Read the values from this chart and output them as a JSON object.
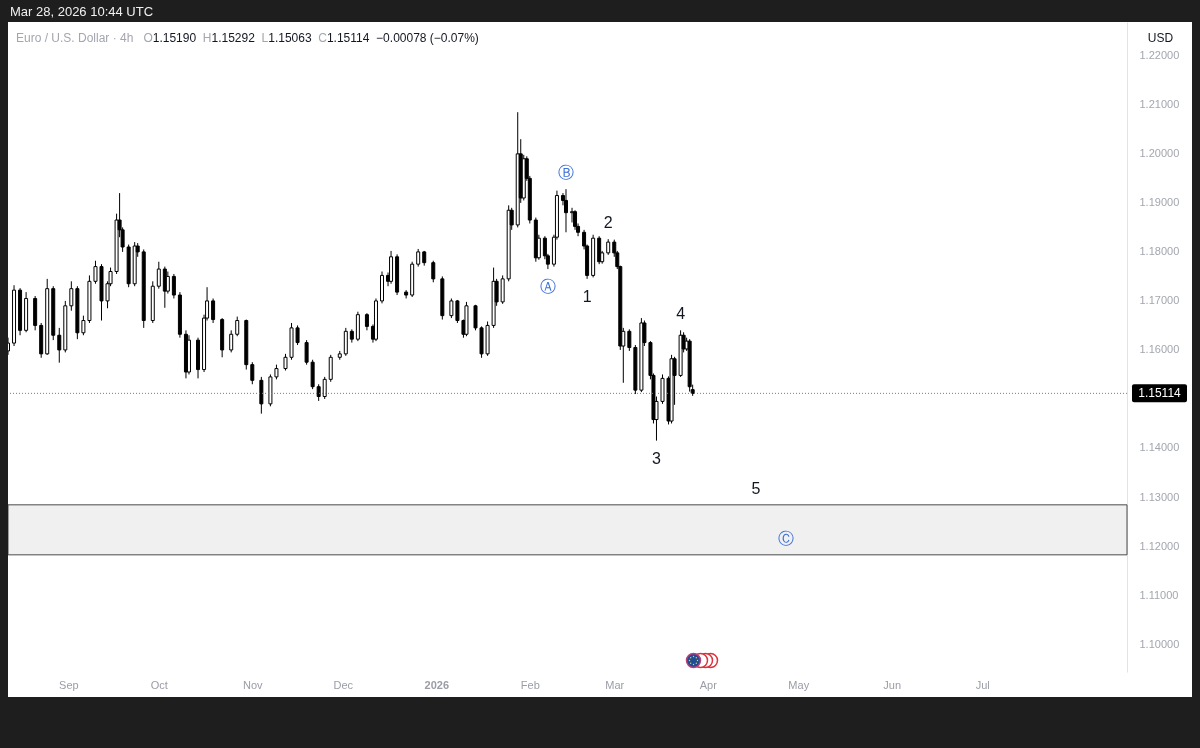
{
  "chart_data": {
    "type": "candlestick",
    "title": "Euro / U.S. Dollar · 4h",
    "subtitle": "O1.15190  H1.15292  L1.15063  C1.15114  −0.00078 (−0.07%)",
    "ylabel": "USD",
    "color": "#000000",
    "annotations": [
      "Mar 28, 2026 10:44 UTC",
      {
        "text": "Ⓐ",
        "x": "2026-02-07",
        "y": 1.1765
      },
      {
        "text": "Ⓑ",
        "x": "2026-02-13",
        "y": 1.1928
      },
      {
        "text": "1",
        "x": "2026-02-20",
        "y": 1.1745
      },
      {
        "text": "2",
        "x": "2026-02-27",
        "y": 1.1826
      },
      {
        "text": "3",
        "x": "2026-03-15",
        "y": 1.1415
      },
      {
        "text": "4",
        "x": "2026-03-23",
        "y": 1.164
      },
      {
        "text": "5",
        "x": "2026-04-17",
        "y": 1.1284
      },
      {
        "text": "Ⓒ",
        "x": "2026-04-27",
        "y": 1.1182
      }
    ],
    "x": [
      "2025-08-12",
      "2025-08-14",
      "2025-08-16",
      "2025-08-18",
      "2025-08-21",
      "2025-08-23",
      "2025-08-25",
      "2025-08-27",
      "2025-08-29",
      "2025-08-31",
      "2025-09-02",
      "2025-09-04",
      "2025-09-06",
      "2025-09-08",
      "2025-09-10",
      "2025-09-12",
      "2025-09-14",
      "2025-09-15",
      "2025-09-17",
      "2025-09-18",
      "2025-09-19",
      "2025-09-21",
      "2025-09-23",
      "2025-09-24",
      "2025-09-26",
      "2025-09-29",
      "2025-10-01",
      "2025-10-03",
      "2025-10-04",
      "2025-10-06",
      "2025-10-08",
      "2025-10-10",
      "2025-10-11",
      "2025-10-14",
      "2025-10-16",
      "2025-10-17",
      "2025-10-19",
      "2025-10-22",
      "2025-10-25",
      "2025-10-27",
      "2025-10-30",
      "2025-11-01",
      "2025-11-04",
      "2025-11-07",
      "2025-11-09",
      "2025-11-12",
      "2025-11-14",
      "2025-11-16",
      "2025-11-19",
      "2025-11-21",
      "2025-11-23",
      "2025-11-25",
      "2025-11-27",
      "2025-11-30",
      "2025-12-02",
      "2025-12-04",
      "2025-12-06",
      "2025-12-09",
      "2025-12-11",
      "2025-12-12",
      "2025-12-14",
      "2025-12-16",
      "2025-12-17",
      "2025-12-19",
      "2025-12-22",
      "2025-12-24",
      "2025-12-26",
      "2025-12-28",
      "2025-12-31",
      "2026-01-03",
      "2026-01-06",
      "2026-01-08",
      "2026-01-10",
      "2026-01-11",
      "2026-01-14",
      "2026-01-16",
      "2026-01-18",
      "2026-01-20",
      "2026-01-21",
      "2026-01-23",
      "2026-01-25",
      "2026-01-26",
      "2026-01-28",
      "2026-01-29",
      "2026-01-30",
      "2026-01-31",
      "2026-02-01",
      "2026-02-03",
      "2026-02-04",
      "2026-02-06",
      "2026-02-07",
      "2026-02-09",
      "2026-02-10",
      "2026-02-12",
      "2026-02-13",
      "2026-02-15",
      "2026-02-16",
      "2026-02-17",
      "2026-02-19",
      "2026-02-20",
      "2026-02-22",
      "2026-02-24",
      "2026-02-25",
      "2026-02-27",
      "2026-03-01",
      "2026-03-02",
      "2026-03-03",
      "2026-03-04",
      "2026-03-06",
      "2026-03-08",
      "2026-03-10",
      "2026-03-11",
      "2026-03-13",
      "2026-03-14",
      "2026-03-15",
      "2026-03-17",
      "2026-03-19",
      "2026-03-20",
      "2026-03-21",
      "2026-03-23",
      "2026-03-24",
      "2026-03-25",
      "2026-03-26",
      "2026-03-27"
    ],
    "ohlc": [
      [
        1.1598,
        1.1625,
        1.159,
        1.1614
      ],
      [
        1.1614,
        1.1732,
        1.1608,
        1.1722
      ],
      [
        1.1722,
        1.1726,
        1.163,
        1.164
      ],
      [
        1.164,
        1.1718,
        1.1636,
        1.1705
      ],
      [
        1.1705,
        1.171,
        1.164,
        1.165
      ],
      [
        1.165,
        1.1655,
        1.1584,
        1.1592
      ],
      [
        1.1592,
        1.1745,
        1.159,
        1.1725
      ],
      [
        1.1725,
        1.173,
        1.162,
        1.163
      ],
      [
        1.163,
        1.1645,
        1.1574,
        1.16
      ],
      [
        1.16,
        1.17,
        1.1595,
        1.169
      ],
      [
        1.169,
        1.174,
        1.168,
        1.1725
      ],
      [
        1.1725,
        1.173,
        1.1622,
        1.1635
      ],
      [
        1.1635,
        1.167,
        1.163,
        1.166
      ],
      [
        1.166,
        1.1752,
        1.1655,
        1.174
      ],
      [
        1.174,
        1.1782,
        1.1735,
        1.177
      ],
      [
        1.177,
        1.1775,
        1.166,
        1.17
      ],
      [
        1.17,
        1.174,
        1.1685,
        1.1735
      ],
      [
        1.1735,
        1.1768,
        1.173,
        1.176
      ],
      [
        1.176,
        1.1878,
        1.1755,
        1.1865
      ],
      [
        1.1865,
        1.192,
        1.183,
        1.1845
      ],
      [
        1.1845,
        1.185,
        1.18,
        1.181
      ],
      [
        1.181,
        1.1815,
        1.1728,
        1.1735
      ],
      [
        1.1735,
        1.182,
        1.173,
        1.1812
      ],
      [
        1.1812,
        1.1818,
        1.179,
        1.18
      ],
      [
        1.18,
        1.1805,
        1.1645,
        1.166
      ],
      [
        1.166,
        1.174,
        1.1655,
        1.173
      ],
      [
        1.173,
        1.178,
        1.1725,
        1.1765
      ],
      [
        1.1765,
        1.177,
        1.1686,
        1.172
      ],
      [
        1.172,
        1.176,
        1.1715,
        1.175
      ],
      [
        1.175,
        1.1755,
        1.1705,
        1.1712
      ],
      [
        1.1712,
        1.1718,
        1.1625,
        1.1632
      ],
      [
        1.1632,
        1.164,
        1.1542,
        1.1555
      ],
      [
        1.1555,
        1.163,
        1.155,
        1.162
      ],
      [
        1.162,
        1.1625,
        1.1542,
        1.156
      ],
      [
        1.156,
        1.1672,
        1.1555,
        1.1665
      ],
      [
        1.1665,
        1.1728,
        1.166,
        1.17
      ],
      [
        1.17,
        1.1705,
        1.1655,
        1.1662
      ],
      [
        1.1662,
        1.1665,
        1.1585,
        1.16
      ],
      [
        1.16,
        1.164,
        1.1595,
        1.1632
      ],
      [
        1.1632,
        1.1668,
        1.1628,
        1.166
      ],
      [
        1.166,
        1.1662,
        1.156,
        1.157
      ],
      [
        1.157,
        1.1575,
        1.153,
        1.1538
      ],
      [
        1.1538,
        1.1545,
        1.147,
        1.149
      ],
      [
        1.149,
        1.155,
        1.1485,
        1.1545
      ],
      [
        1.1545,
        1.157,
        1.154,
        1.1562
      ],
      [
        1.1562,
        1.1592,
        1.1558,
        1.1585
      ],
      [
        1.1585,
        1.1655,
        1.158,
        1.1645
      ],
      [
        1.1645,
        1.165,
        1.161,
        1.1615
      ],
      [
        1.1615,
        1.162,
        1.157,
        1.1575
      ],
      [
        1.1575,
        1.158,
        1.152,
        1.1525
      ],
      [
        1.1525,
        1.153,
        1.1496,
        1.1505
      ],
      [
        1.1505,
        1.1545,
        1.15,
        1.154
      ],
      [
        1.154,
        1.159,
        1.1535,
        1.1585
      ],
      [
        1.1585,
        1.1598,
        1.158,
        1.1592
      ],
      [
        1.1592,
        1.1645,
        1.1588,
        1.1638
      ],
      [
        1.1638,
        1.1642,
        1.1615,
        1.1622
      ],
      [
        1.1622,
        1.1678,
        1.1618,
        1.1672
      ],
      [
        1.1672,
        1.1675,
        1.164,
        1.1648
      ],
      [
        1.1648,
        1.1652,
        1.1615,
        1.1622
      ],
      [
        1.1622,
        1.1705,
        1.1618,
        1.17
      ],
      [
        1.17,
        1.176,
        1.1695,
        1.1752
      ],
      [
        1.1752,
        1.1758,
        1.173,
        1.174
      ],
      [
        1.174,
        1.1802,
        1.1735,
        1.179
      ],
      [
        1.179,
        1.1795,
        1.1712,
        1.1718
      ],
      [
        1.1718,
        1.1722,
        1.1705,
        1.1712
      ],
      [
        1.1712,
        1.178,
        1.1708,
        1.1775
      ],
      [
        1.1775,
        1.1806,
        1.177,
        1.18
      ],
      [
        1.18,
        1.1802,
        1.1772,
        1.1778
      ],
      [
        1.1778,
        1.1782,
        1.1738,
        1.1745
      ],
      [
        1.1745,
        1.175,
        1.1662,
        1.167
      ],
      [
        1.167,
        1.1705,
        1.1665,
        1.17
      ],
      [
        1.17,
        1.1702,
        1.1655,
        1.166
      ],
      [
        1.166,
        1.1662,
        1.1625,
        1.1632
      ],
      [
        1.1632,
        1.1698,
        1.1628,
        1.169
      ],
      [
        1.169,
        1.1692,
        1.164,
        1.1645
      ],
      [
        1.1645,
        1.1648,
        1.1584,
        1.1592
      ],
      [
        1.1592,
        1.1658,
        1.1588,
        1.165
      ],
      [
        1.165,
        1.1768,
        1.1645,
        1.174
      ],
      [
        1.174,
        1.1745,
        1.169,
        1.1698
      ],
      [
        1.1698,
        1.1752,
        1.1694,
        1.1745
      ],
      [
        1.1745,
        1.1895,
        1.174,
        1.1885
      ],
      [
        1.1885,
        1.189,
        1.1845,
        1.1855
      ],
      [
        1.1855,
        1.2085,
        1.185,
        1.2
      ],
      [
        1.2,
        1.203,
        1.19,
        1.191
      ],
      [
        1.191,
        1.1998,
        1.1905,
        1.199
      ],
      [
        1.199,
        1.1995,
        1.1945,
        1.195
      ],
      [
        1.195,
        1.1955,
        1.1858,
        1.1865
      ],
      [
        1.1865,
        1.187,
        1.178,
        1.1788
      ],
      [
        1.1788,
        1.1835,
        1.1784,
        1.1828
      ],
      [
        1.1828,
        1.1832,
        1.1785,
        1.1792
      ],
      [
        1.1792,
        1.1796,
        1.1765,
        1.1775
      ],
      [
        1.1775,
        1.1835,
        1.177,
        1.183
      ],
      [
        1.183,
        1.1925,
        1.1825,
        1.1915
      ],
      [
        1.1915,
        1.192,
        1.1895,
        1.1905
      ],
      [
        1.1905,
        1.1928,
        1.184,
        1.188
      ],
      [
        1.188,
        1.189,
        1.186,
        1.1882
      ],
      [
        1.1882,
        1.1885,
        1.1845,
        1.1852
      ],
      [
        1.1852,
        1.1858,
        1.1832,
        1.184
      ],
      [
        1.184,
        1.1845,
        1.1805,
        1.1812
      ],
      [
        1.1812,
        1.1815,
        1.1745,
        1.1752
      ],
      [
        1.1752,
        1.1835,
        1.1748,
        1.1828
      ],
      [
        1.1828,
        1.1832,
        1.1775,
        1.178
      ],
      [
        1.178,
        1.1802,
        1.1776,
        1.1798
      ],
      [
        1.1798,
        1.1826,
        1.1794,
        1.182
      ],
      [
        1.182,
        1.1825,
        1.179,
        1.1798
      ],
      [
        1.1798,
        1.1802,
        1.1765,
        1.177
      ],
      [
        1.177,
        1.1772,
        1.16,
        1.1608
      ],
      [
        1.1608,
        1.1645,
        1.1533,
        1.1638
      ],
      [
        1.1638,
        1.1642,
        1.1598,
        1.1605
      ],
      [
        1.1605,
        1.161,
        1.151,
        1.1518
      ],
      [
        1.1518,
        1.1665,
        1.1514,
        1.1655
      ],
      [
        1.1655,
        1.166,
        1.1608,
        1.1615
      ],
      [
        1.1615,
        1.1618,
        1.154,
        1.1548
      ],
      [
        1.1548,
        1.1552,
        1.145,
        1.1458
      ],
      [
        1.1458,
        1.1505,
        1.1415,
        1.1495
      ],
      [
        1.1495,
        1.155,
        1.149,
        1.1542
      ],
      [
        1.1542,
        1.1546,
        1.1448,
        1.1455
      ],
      [
        1.1455,
        1.159,
        1.145,
        1.1582
      ],
      [
        1.1582,
        1.1586,
        1.1488,
        1.1548
      ],
      [
        1.1548,
        1.164,
        1.1545,
        1.163
      ],
      [
        1.163,
        1.1636,
        1.1595,
        1.1602
      ],
      [
        1.1602,
        1.1625,
        1.1598,
        1.1618
      ],
      [
        1.1618,
        1.1622,
        1.1515,
        1.1525
      ],
      [
        1.1519,
        1.15292,
        1.15063,
        1.15114
      ]
    ],
    "xlim": [
      "2025-08-12",
      "2026-08-18"
    ],
    "ylim": [
      1.0943,
      1.2269
    ],
    "xticks": [
      {
        "value": "2025-09-01",
        "label": "Sep"
      },
      {
        "value": "2025-10-01",
        "label": "Oct"
      },
      {
        "value": "2025-11-01",
        "label": "Nov"
      },
      {
        "value": "2025-12-01",
        "label": "Dec"
      },
      {
        "value": "2026-01-01",
        "label": "2026"
      },
      {
        "value": "2026-02-01",
        "label": "Feb"
      },
      {
        "value": "2026-03-01",
        "label": "Mar"
      },
      {
        "value": "2026-04-01",
        "label": "Apr"
      },
      {
        "value": "2026-05-01",
        "label": "May"
      },
      {
        "value": "2026-06-01",
        "label": "Jun"
      },
      {
        "value": "2026-07-01",
        "label": "Jul"
      }
    ],
    "yticks": [
      {
        "value": 1.1,
        "label": "1.10000"
      },
      {
        "value": 1.11,
        "label": "1.11000"
      },
      {
        "value": 1.12,
        "label": "1.12000"
      },
      {
        "value": 1.13,
        "label": "1.13000"
      },
      {
        "value": 1.14,
        "label": "1.14000"
      },
      {
        "value": 1.16,
        "label": "1.16000"
      },
      {
        "value": 1.17,
        "label": "1.17000"
      },
      {
        "value": 1.18,
        "label": "1.18000"
      },
      {
        "value": 1.19,
        "label": "1.19000"
      },
      {
        "value": 1.2,
        "label": "1.20000"
      },
      {
        "value": 1.21,
        "label": "1.21000"
      },
      {
        "value": 1.22,
        "label": "1.22000"
      }
    ],
    "ref_lines": [
      {
        "axis": "y",
        "value": 1.15114,
        "label": "1.15114",
        "color": "#787b86",
        "line_style": "dotted"
      }
    ],
    "bands": [
      {
        "axis": "y",
        "from": 1.1182,
        "to": 1.1284,
        "color": "#f0f0f0"
      }
    ]
  }
}
